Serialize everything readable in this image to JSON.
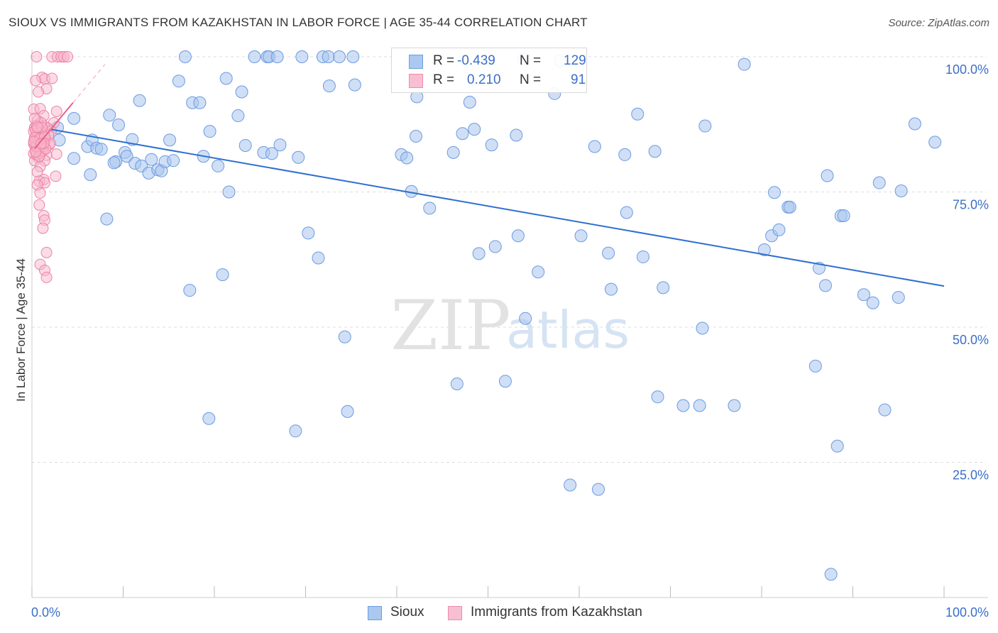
{
  "header": {
    "title": "SIOUX VS IMMIGRANTS FROM KAZAKHSTAN IN LABOR FORCE | AGE 35-44 CORRELATION CHART",
    "source": "Source: ZipAtlas.com"
  },
  "watermark": {
    "zip": "ZIP",
    "atlas": "atlas"
  },
  "legend": {
    "r_label": "R =",
    "n_label": "N =",
    "series": [
      {
        "r": "-0.439",
        "n": "129",
        "fill": "#aac8f0",
        "stroke": "#6e9ee0"
      },
      {
        "r": "0.210",
        "n": "91",
        "fill": "#f8bfd2",
        "stroke": "#ee8aac"
      }
    ]
  },
  "colors": {
    "blue_point": "#a9c5ee",
    "blue_stroke": "#6b9be0",
    "blue_line": "#2f6fcf",
    "pink_point": "#f7b8cc",
    "pink_stroke": "#ec82a6",
    "pink_line": "#e8608e",
    "axis_value": "#3a6fc9",
    "grid": "#dedede"
  },
  "chart_data": {
    "type": "scatter",
    "title": "SIOUX VS IMMIGRANTS FROM KAZAKHSTAN IN LABOR FORCE | AGE 35-44 CORRELATION CHART",
    "xlabel": "",
    "ylabel": "In Labor Force | Age 35-44",
    "xlim": [
      0,
      100
    ],
    "ylim": [
      0,
      100
    ],
    "x_tick_labels": [
      "0.0%",
      "100.0%"
    ],
    "y_ticks": [
      25,
      50,
      75,
      100
    ],
    "y_tick_labels": [
      "25.0%",
      "50.0%",
      "75.0%",
      "100.0%"
    ],
    "grid": true,
    "legend_position": "bottom",
    "series": [
      {
        "name": "Sioux",
        "r": -0.439,
        "n": 129,
        "trend": {
          "x": [
            2,
            100
          ],
          "y": [
            86.6,
            57.6
          ]
        },
        "points": [
          [
            2.8,
            86.9
          ],
          [
            3.0,
            84.6
          ],
          [
            4.6,
            81.2
          ],
          [
            4.6,
            88.6
          ],
          [
            6.1,
            83.4
          ],
          [
            6.6,
            84.6
          ],
          [
            7.1,
            83.1
          ],
          [
            6.4,
            78.2
          ],
          [
            7.6,
            82.9
          ],
          [
            8.2,
            70.0
          ],
          [
            8.5,
            89.2
          ],
          [
            9.2,
            80.6
          ],
          [
            9.0,
            80.4
          ],
          [
            9.5,
            87.4
          ],
          [
            10.2,
            82.3
          ],
          [
            10.4,
            81.6
          ],
          [
            11.0,
            84.7
          ],
          [
            11.3,
            80.3
          ],
          [
            11.8,
            91.9
          ],
          [
            12.0,
            79.8
          ],
          [
            12.8,
            78.5
          ],
          [
            13.1,
            81.0
          ],
          [
            13.8,
            79.1
          ],
          [
            14.2,
            78.9
          ],
          [
            14.6,
            80.6
          ],
          [
            15.1,
            84.6
          ],
          [
            15.5,
            80.8
          ],
          [
            16.1,
            95.5
          ],
          [
            16.8,
            100.0
          ],
          [
            17.3,
            56.8
          ],
          [
            17.6,
            91.5
          ],
          [
            18.4,
            91.5
          ],
          [
            18.8,
            81.6
          ],
          [
            19.5,
            86.2
          ],
          [
            19.4,
            33.1
          ],
          [
            20.4,
            79.8
          ],
          [
            20.9,
            59.7
          ],
          [
            21.3,
            96.0
          ],
          [
            21.6,
            75.0
          ],
          [
            22.6,
            89.1
          ],
          [
            23.0,
            93.5
          ],
          [
            23.4,
            83.6
          ],
          [
            24.4,
            100.0
          ],
          [
            25.4,
            82.3
          ],
          [
            25.8,
            100.0
          ],
          [
            26.0,
            100.0
          ],
          [
            26.3,
            82.1
          ],
          [
            26.9,
            100.0
          ],
          [
            27.2,
            83.7
          ],
          [
            28.9,
            30.8
          ],
          [
            29.2,
            81.4
          ],
          [
            29.6,
            100.0
          ],
          [
            30.3,
            67.4
          ],
          [
            31.4,
            62.8
          ],
          [
            31.9,
            100.0
          ],
          [
            32.5,
            100.0
          ],
          [
            32.6,
            94.6
          ],
          [
            33.7,
            100.0
          ],
          [
            34.3,
            48.2
          ],
          [
            34.6,
            34.4
          ],
          [
            35.2,
            100.0
          ],
          [
            35.4,
            94.8
          ],
          [
            40.5,
            81.9
          ],
          [
            41.1,
            81.3
          ],
          [
            41.6,
            75.1
          ],
          [
            42.1,
            85.3
          ],
          [
            42.2,
            92.6
          ],
          [
            43.6,
            72.0
          ],
          [
            46.2,
            82.3
          ],
          [
            46.6,
            39.5
          ],
          [
            47.2,
            85.8
          ],
          [
            48.0,
            91.6
          ],
          [
            48.5,
            86.6
          ],
          [
            49.0,
            63.6
          ],
          [
            50.4,
            83.7
          ],
          [
            50.8,
            64.9
          ],
          [
            51.9,
            40.0
          ],
          [
            53.1,
            85.5
          ],
          [
            53.3,
            66.9
          ],
          [
            53.9,
            99.6
          ],
          [
            54.1,
            51.6
          ],
          [
            55.5,
            60.2
          ],
          [
            57.3,
            93.2
          ],
          [
            57.9,
            99.2
          ],
          [
            59.0,
            20.8
          ],
          [
            60.2,
            66.9
          ],
          [
            61.7,
            83.4
          ],
          [
            62.1,
            20.0
          ],
          [
            63.2,
            63.7
          ],
          [
            63.5,
            57.0
          ],
          [
            65.0,
            81.9
          ],
          [
            65.2,
            71.2
          ],
          [
            66.4,
            89.4
          ],
          [
            67.0,
            63.0
          ],
          [
            68.3,
            82.5
          ],
          [
            68.6,
            37.1
          ],
          [
            69.2,
            57.3
          ],
          [
            71.4,
            35.5
          ],
          [
            73.2,
            35.5
          ],
          [
            73.5,
            49.8
          ],
          [
            73.8,
            87.2
          ],
          [
            77.0,
            35.5
          ],
          [
            78.1,
            98.6
          ],
          [
            80.3,
            64.3
          ],
          [
            81.1,
            66.9
          ],
          [
            81.4,
            74.9
          ],
          [
            81.9,
            68.0
          ],
          [
            82.9,
            72.2
          ],
          [
            83.1,
            72.2
          ],
          [
            85.9,
            42.8
          ],
          [
            86.3,
            60.9
          ],
          [
            87.0,
            57.7
          ],
          [
            87.2,
            78.0
          ],
          [
            87.6,
            4.3
          ],
          [
            88.3,
            28.0
          ],
          [
            88.7,
            70.6
          ],
          [
            89.0,
            70.6
          ],
          [
            91.2,
            56.0
          ],
          [
            92.2,
            54.5
          ],
          [
            92.9,
            76.7
          ],
          [
            93.5,
            34.7
          ],
          [
            95.0,
            55.5
          ],
          [
            95.3,
            75.2
          ],
          [
            96.8,
            87.6
          ],
          [
            99.0,
            84.2
          ]
        ]
      },
      {
        "name": "Immigrants from Kazakhstan",
        "r": 0.21,
        "n": 91,
        "trend": {
          "x": [
            0.3,
            4.5
          ],
          "y": [
            83.0,
            91.5
          ]
        },
        "points": [
          [
            0.5,
            100.0
          ],
          [
            2.2,
            100.0
          ],
          [
            2.8,
            100.0
          ],
          [
            3.2,
            100.0
          ],
          [
            3.5,
            100.0
          ],
          [
            3.9,
            100.0
          ],
          [
            1.1,
            96.2
          ],
          [
            1.4,
            95.9
          ],
          [
            0.4,
            95.6
          ],
          [
            1.6,
            94.1
          ],
          [
            2.2,
            96.0
          ],
          [
            0.7,
            93.5
          ],
          [
            0.2,
            90.3
          ],
          [
            0.9,
            90.4
          ],
          [
            1.3,
            89.1
          ],
          [
            2.7,
            89.9
          ],
          [
            0.6,
            88.2
          ],
          [
            2.4,
            87.8
          ],
          [
            1.4,
            87.1
          ],
          [
            0.9,
            86.5
          ],
          [
            0.3,
            86.9
          ],
          [
            0.5,
            85.8
          ],
          [
            0.8,
            86.7
          ],
          [
            1.3,
            86.4
          ],
          [
            0.4,
            85.2
          ],
          [
            0.9,
            85.2
          ],
          [
            0.3,
            84.7
          ],
          [
            1.1,
            84.2
          ],
          [
            1.5,
            84.6
          ],
          [
            0.6,
            83.9
          ],
          [
            0.3,
            83.6
          ],
          [
            1.9,
            83.7
          ],
          [
            0.6,
            83.1
          ],
          [
            1.1,
            83.1
          ],
          [
            0.7,
            82.9
          ],
          [
            0.4,
            82.7
          ],
          [
            2.7,
            82.0
          ],
          [
            0.2,
            82.1
          ],
          [
            1.6,
            81.8
          ],
          [
            0.7,
            81.3
          ],
          [
            0.3,
            80.8
          ],
          [
            1.4,
            80.8
          ],
          [
            0.9,
            79.7
          ],
          [
            0.6,
            78.7
          ],
          [
            2.6,
            77.9
          ],
          [
            1.3,
            77.3
          ],
          [
            0.8,
            77.0
          ],
          [
            1.4,
            76.7
          ],
          [
            0.6,
            76.3
          ],
          [
            0.9,
            74.8
          ],
          [
            0.8,
            72.6
          ],
          [
            1.3,
            70.6
          ],
          [
            1.4,
            69.8
          ],
          [
            1.2,
            68.3
          ],
          [
            1.6,
            63.8
          ],
          [
            0.9,
            61.6
          ],
          [
            1.4,
            60.5
          ],
          [
            1.6,
            59.2
          ],
          [
            0.5,
            87.3
          ],
          [
            1.0,
            86.0
          ],
          [
            0.2,
            86.2
          ],
          [
            1.2,
            85.5
          ],
          [
            0.4,
            84.0
          ],
          [
            0.8,
            84.3
          ],
          [
            1.7,
            86.8
          ],
          [
            0.5,
            81.9
          ],
          [
            0.9,
            82.2
          ],
          [
            1.3,
            83.5
          ],
          [
            2.1,
            86.3
          ],
          [
            0.2,
            83.9
          ],
          [
            0.6,
            85.9
          ],
          [
            1.0,
            87.8
          ],
          [
            0.3,
            88.6
          ],
          [
            1.8,
            85.5
          ],
          [
            0.7,
            84.7
          ],
          [
            1.2,
            82.6
          ],
          [
            0.4,
            86.4
          ],
          [
            2.0,
            84.0
          ],
          [
            0.8,
            83.3
          ],
          [
            1.5,
            83.0
          ],
          [
            0.3,
            85.0
          ],
          [
            0.9,
            84.9
          ],
          [
            0.5,
            83.5
          ],
          [
            1.1,
            86.9
          ],
          [
            0.6,
            87.0
          ],
          [
            1.4,
            85.2
          ],
          [
            0.2,
            84.3
          ],
          [
            0.8,
            81.6
          ],
          [
            1.3,
            84.0
          ],
          [
            0.4,
            82.4
          ],
          [
            1.0,
            83.9
          ]
        ]
      }
    ]
  },
  "bottom_legend": [
    {
      "label": "Sioux",
      "fill": "#aac8f0",
      "stroke": "#6e9ee0"
    },
    {
      "label": "Immigrants from Kazakhstan",
      "fill": "#f8bfd2",
      "stroke": "#ee8aac"
    }
  ]
}
